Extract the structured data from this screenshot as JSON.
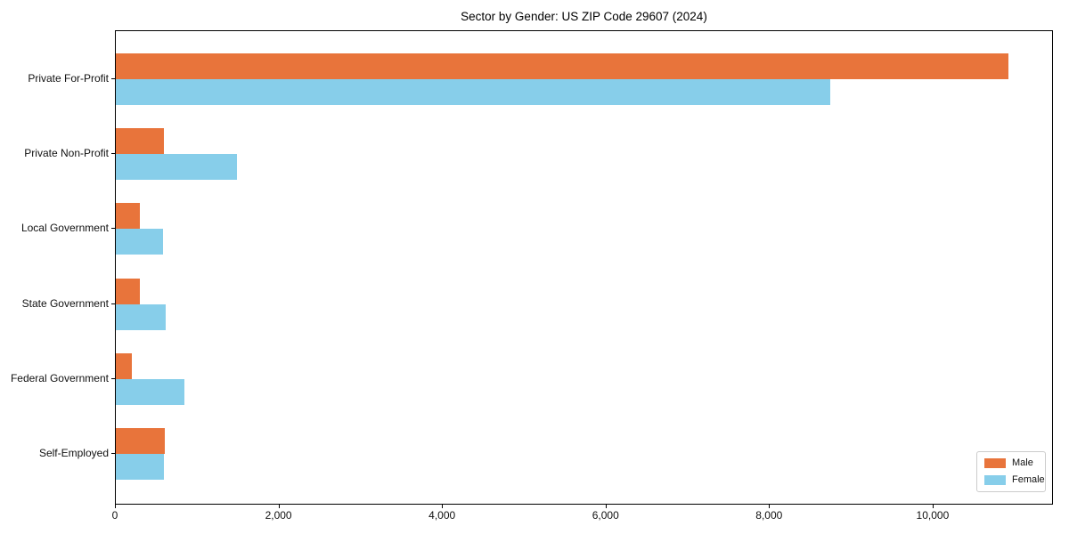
{
  "chart_data": {
    "type": "bar",
    "orientation": "horizontal",
    "title": "Sector by Gender: US ZIP Code 29607 (2024)",
    "categories": [
      "Private For-Profit",
      "Private Non-Profit",
      "Local Government",
      "State Government",
      "Federal Government",
      "Self-Employed"
    ],
    "series": [
      {
        "name": "Male",
        "color": "#E8743B",
        "values": [
          10920,
          590,
          290,
          290,
          200,
          600
        ]
      },
      {
        "name": "Female",
        "color": "#87CEEA",
        "values": [
          8740,
          1480,
          580,
          610,
          840,
          590
        ]
      }
    ],
    "xlim": [
      0,
      11450
    ],
    "x_ticks": [
      0,
      2000,
      4000,
      6000,
      8000,
      10000
    ],
    "x_tick_labels": [
      "0",
      "2,000",
      "4,000",
      "6,000",
      "8,000",
      "10,000"
    ],
    "ylabel": "",
    "xlabel": "",
    "grid": false,
    "legend_position": "lower right",
    "background_color": "#ffffff",
    "spine_color": "#000000"
  }
}
